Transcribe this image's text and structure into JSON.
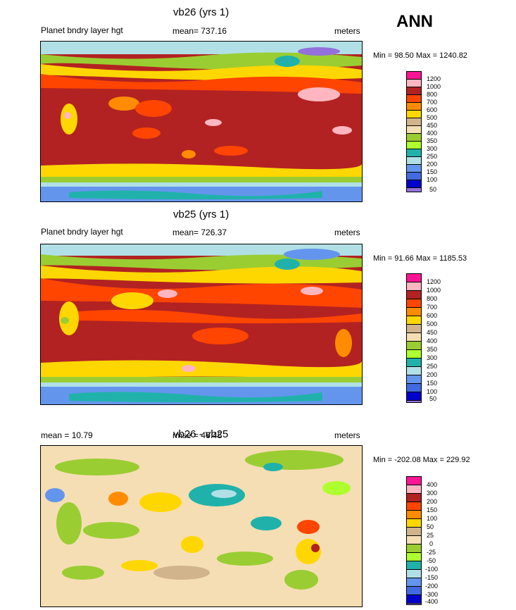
{
  "season": "ANN",
  "colors": {
    "pos": [
      "#ff1493",
      "#ffb6c1",
      "#b22222",
      "#ff4500",
      "#ff8c00",
      "#ffd700",
      "#d2b48c",
      "#f5deb3",
      "#9acd32",
      "#adff2f",
      "#20b2aa",
      "#b0e0e6",
      "#6495ed",
      "#4169e1",
      "#0000cd",
      "#9370db"
    ]
  },
  "panels": [
    {
      "title": "vb26 (yrs 1)",
      "left": "Planet bndry layer hgt",
      "mid": "mean= 737.16",
      "units": "meters",
      "minmax": "Min =  98.50 Max = 1240.82",
      "levels": [
        "1200",
        "1000",
        "800",
        "700",
        "600",
        "500",
        "450",
        "400",
        "350",
        "300",
        "250",
        "200",
        "150",
        "100",
        "50"
      ]
    },
    {
      "title": "vb25 (yrs 1)",
      "left": "Planet bndry layer hgt",
      "mid": "mean= 726.37",
      "units": "meters",
      "minmax": "Min =  91.66 Max = 1185.53",
      "levels": [
        "1200",
        "1000",
        "800",
        "700",
        "600",
        "500",
        "450",
        "400",
        "350",
        "300",
        "250",
        "200",
        "150",
        "100",
        "50"
      ]
    },
    {
      "title": "vb26 - vb25",
      "left": "mean =  10.79",
      "mid": "rmse =  46.45",
      "units": "meters",
      "minmax": "Min = -202.08 Max = 229.92",
      "levels": [
        "400",
        "300",
        "200",
        "150",
        "100",
        "50",
        "25",
        "0",
        "-25",
        "-50",
        "-100",
        "-150",
        "-200",
        "-300",
        "-400"
      ]
    }
  ]
}
